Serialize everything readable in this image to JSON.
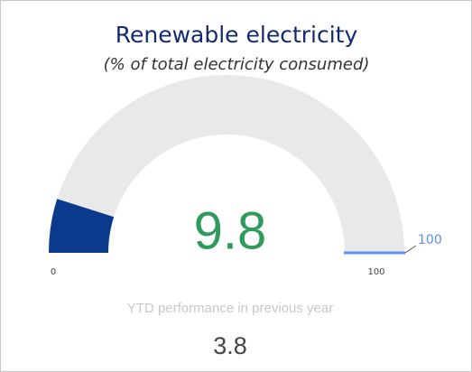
{
  "chart_data": {
    "type": "gauge",
    "title": "Renewable electricity",
    "subtitle": "(% of total electricity consumed)",
    "value": 9.8,
    "ylim": [
      0,
      100
    ],
    "target": 100,
    "comparison_label": "YTD performance in previous year",
    "comparison_value": 3.8,
    "color": "#0b3a8c",
    "track_color": "#e9e9e9",
    "target_color": "#5b8ff0",
    "value_color": "#2e9a5c"
  }
}
